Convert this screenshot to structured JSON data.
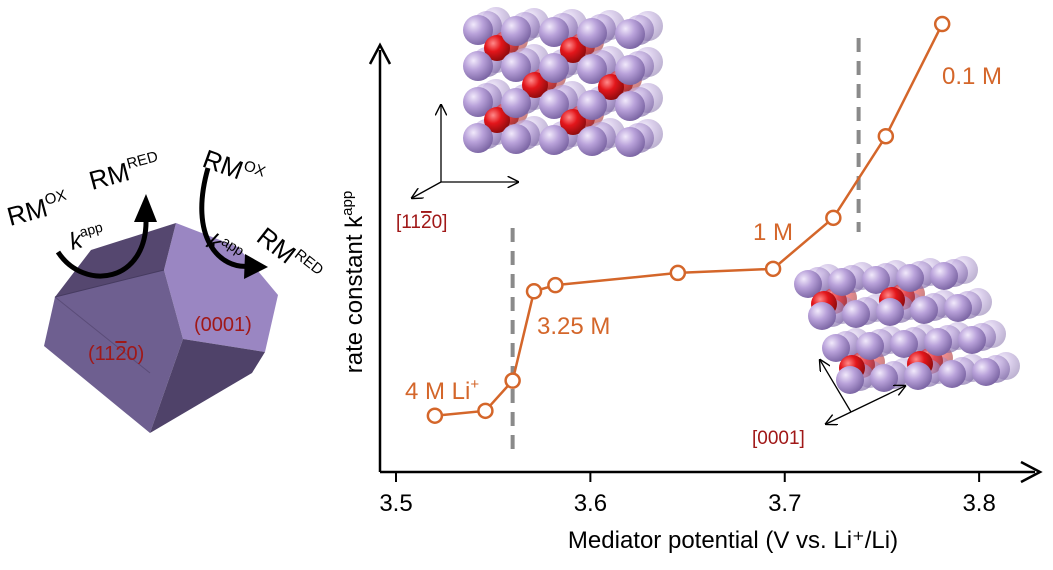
{
  "chart_data": {
    "type": "line",
    "xlabel": "Mediator potential (V vs. Li⁺/Li)",
    "ylabel": "rate constant k",
    "ylabel_sup": "app",
    "xlim": [
      3.5,
      3.82
    ],
    "ylim": [
      0,
      1
    ],
    "x_ticks": [
      3.5,
      3.6,
      3.7,
      3.8
    ],
    "x_tick_labels": [
      "3.5",
      "3.6",
      "3.7",
      "3.8"
    ],
    "grid": false,
    "series": [
      {
        "color": "#d4662a",
        "x": [
          3.52,
          3.546,
          3.56,
          3.571,
          3.582,
          3.645,
          3.694,
          3.725,
          3.752,
          3.781
        ],
        "y": [
          0.035,
          0.047,
          0.121,
          0.34,
          0.355,
          0.385,
          0.395,
          0.52,
          0.72,
          0.995
        ]
      }
    ],
    "vlines": [
      3.56,
      3.738
    ],
    "annotations": [
      {
        "text": "4 M Li",
        "sup": "+"
      },
      {
        "text": "3.25 M"
      },
      {
        "text": "1 M"
      },
      {
        "text": "0.1 M"
      }
    ]
  },
  "schematic": {
    "facet_side": "(11",
    "facet_side_bar": "2",
    "facet_side_end": "0)",
    "facet_top": "(0001)",
    "rm": "RM",
    "ox": "OX",
    "red": "RED",
    "k": "k",
    "app": "app"
  },
  "crystal_top": {
    "axis_label": "[11",
    "axis_bar": "2",
    "axis_end": "0]"
  },
  "crystal_bottom": {
    "axis_label": "[0001]"
  },
  "colors": {
    "series": "#d4662a",
    "annotation": "#d4662a",
    "dashed": "#8a8a8a",
    "prism_front": "#6e5f90",
    "prism_top": "#9a86c2",
    "facet_label": "#a01818",
    "li_atom": "#b69ed6",
    "o_atom": "#e0161a"
  }
}
